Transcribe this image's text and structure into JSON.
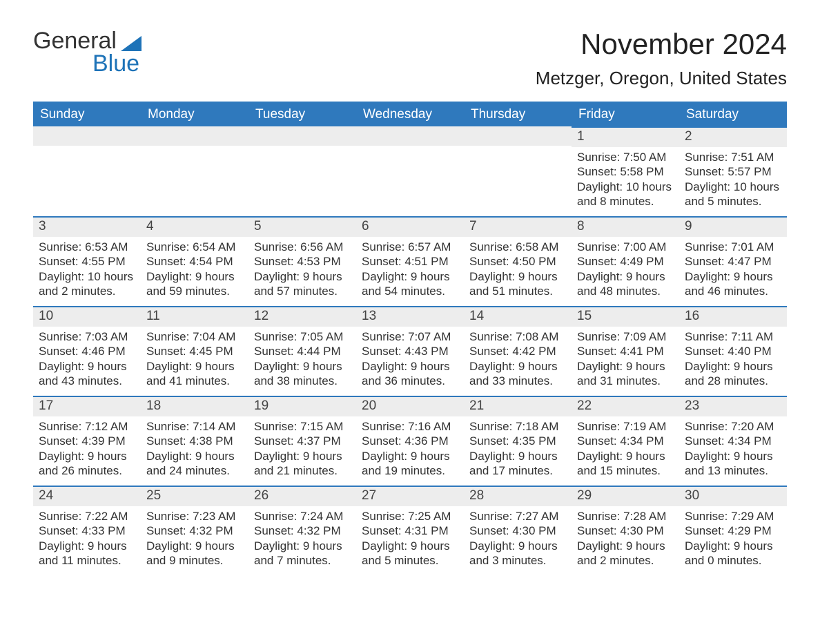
{
  "logo": {
    "text1": "General",
    "text2": "Blue"
  },
  "title": "November 2024",
  "location": "Metzger, Oregon, United States",
  "colors": {
    "header_bg": "#2f79bd",
    "header_text": "#ffffff",
    "row_border": "#2f79bd",
    "daynum_bg": "#ededed",
    "text": "#333333",
    "logo_blue": "#1e73b8",
    "background": "#ffffff"
  },
  "day_headers": [
    "Sunday",
    "Monday",
    "Tuesday",
    "Wednesday",
    "Thursday",
    "Friday",
    "Saturday"
  ],
  "weeks": [
    [
      null,
      null,
      null,
      null,
      null,
      {
        "n": "1",
        "sunrise": "7:50 AM",
        "sunset": "5:58 PM",
        "daylight": "10 hours and 8 minutes."
      },
      {
        "n": "2",
        "sunrise": "7:51 AM",
        "sunset": "5:57 PM",
        "daylight": "10 hours and 5 minutes."
      }
    ],
    [
      {
        "n": "3",
        "sunrise": "6:53 AM",
        "sunset": "4:55 PM",
        "daylight": "10 hours and 2 minutes."
      },
      {
        "n": "4",
        "sunrise": "6:54 AM",
        "sunset": "4:54 PM",
        "daylight": "9 hours and 59 minutes."
      },
      {
        "n": "5",
        "sunrise": "6:56 AM",
        "sunset": "4:53 PM",
        "daylight": "9 hours and 57 minutes."
      },
      {
        "n": "6",
        "sunrise": "6:57 AM",
        "sunset": "4:51 PM",
        "daylight": "9 hours and 54 minutes."
      },
      {
        "n": "7",
        "sunrise": "6:58 AM",
        "sunset": "4:50 PM",
        "daylight": "9 hours and 51 minutes."
      },
      {
        "n": "8",
        "sunrise": "7:00 AM",
        "sunset": "4:49 PM",
        "daylight": "9 hours and 48 minutes."
      },
      {
        "n": "9",
        "sunrise": "7:01 AM",
        "sunset": "4:47 PM",
        "daylight": "9 hours and 46 minutes."
      }
    ],
    [
      {
        "n": "10",
        "sunrise": "7:03 AM",
        "sunset": "4:46 PM",
        "daylight": "9 hours and 43 minutes."
      },
      {
        "n": "11",
        "sunrise": "7:04 AM",
        "sunset": "4:45 PM",
        "daylight": "9 hours and 41 minutes."
      },
      {
        "n": "12",
        "sunrise": "7:05 AM",
        "sunset": "4:44 PM",
        "daylight": "9 hours and 38 minutes."
      },
      {
        "n": "13",
        "sunrise": "7:07 AM",
        "sunset": "4:43 PM",
        "daylight": "9 hours and 36 minutes."
      },
      {
        "n": "14",
        "sunrise": "7:08 AM",
        "sunset": "4:42 PM",
        "daylight": "9 hours and 33 minutes."
      },
      {
        "n": "15",
        "sunrise": "7:09 AM",
        "sunset": "4:41 PM",
        "daylight": "9 hours and 31 minutes."
      },
      {
        "n": "16",
        "sunrise": "7:11 AM",
        "sunset": "4:40 PM",
        "daylight": "9 hours and 28 minutes."
      }
    ],
    [
      {
        "n": "17",
        "sunrise": "7:12 AM",
        "sunset": "4:39 PM",
        "daylight": "9 hours and 26 minutes."
      },
      {
        "n": "18",
        "sunrise": "7:14 AM",
        "sunset": "4:38 PM",
        "daylight": "9 hours and 24 minutes."
      },
      {
        "n": "19",
        "sunrise": "7:15 AM",
        "sunset": "4:37 PM",
        "daylight": "9 hours and 21 minutes."
      },
      {
        "n": "20",
        "sunrise": "7:16 AM",
        "sunset": "4:36 PM",
        "daylight": "9 hours and 19 minutes."
      },
      {
        "n": "21",
        "sunrise": "7:18 AM",
        "sunset": "4:35 PM",
        "daylight": "9 hours and 17 minutes."
      },
      {
        "n": "22",
        "sunrise": "7:19 AM",
        "sunset": "4:34 PM",
        "daylight": "9 hours and 15 minutes."
      },
      {
        "n": "23",
        "sunrise": "7:20 AM",
        "sunset": "4:34 PM",
        "daylight": "9 hours and 13 minutes."
      }
    ],
    [
      {
        "n": "24",
        "sunrise": "7:22 AM",
        "sunset": "4:33 PM",
        "daylight": "9 hours and 11 minutes."
      },
      {
        "n": "25",
        "sunrise": "7:23 AM",
        "sunset": "4:32 PM",
        "daylight": "9 hours and 9 minutes."
      },
      {
        "n": "26",
        "sunrise": "7:24 AM",
        "sunset": "4:32 PM",
        "daylight": "9 hours and 7 minutes."
      },
      {
        "n": "27",
        "sunrise": "7:25 AM",
        "sunset": "4:31 PM",
        "daylight": "9 hours and 5 minutes."
      },
      {
        "n": "28",
        "sunrise": "7:27 AM",
        "sunset": "4:30 PM",
        "daylight": "9 hours and 3 minutes."
      },
      {
        "n": "29",
        "sunrise": "7:28 AM",
        "sunset": "4:30 PM",
        "daylight": "9 hours and 2 minutes."
      },
      {
        "n": "30",
        "sunrise": "7:29 AM",
        "sunset": "4:29 PM",
        "daylight": "9 hours and 0 minutes."
      }
    ]
  ],
  "labels": {
    "sunrise": "Sunrise: ",
    "sunset": "Sunset: ",
    "daylight": "Daylight: "
  }
}
